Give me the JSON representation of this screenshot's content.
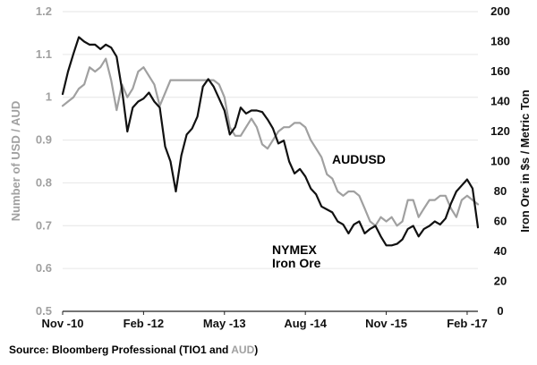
{
  "chart_data": {
    "type": "line",
    "xlabel": "",
    "ylabel_left": "Number of USD / AUD",
    "ylabel_right": "Iron Ore in $s / Metric Ton",
    "x_ticks": [
      "Nov -10",
      "Feb -12",
      "May -13",
      "Aug -14",
      "Nov -15",
      "Feb -17"
    ],
    "ylim_left": [
      0.5,
      1.2
    ],
    "ylim_right": [
      0,
      200
    ],
    "y_ticks_left": [
      "1.2",
      "1.1",
      "1",
      "0.9",
      "0.8",
      "0.7",
      "0.6",
      "0.5"
    ],
    "y_ticks_right": [
      "200",
      "180",
      "160",
      "140",
      "120",
      "100",
      "80",
      "60",
      "40",
      "20",
      "0"
    ],
    "grid": "horizontal",
    "series": [
      {
        "name": "AUDUSD",
        "axis": "left",
        "color": "#a0a0a0",
        "x": [
          "Nov -10",
          "Dec -10",
          "Jan -11",
          "Feb -11",
          "Mar -11",
          "Apr -11",
          "May -11",
          "Jun -11",
          "Jul -11",
          "Aug -11",
          "Sep -11",
          "Oct -11",
          "Nov -11",
          "Dec -11",
          "Jan -12",
          "Feb -12",
          "Mar -12",
          "Apr -12",
          "May -12",
          "Jun -12",
          "Jul -12",
          "Aug -12",
          "Sep -12",
          "Oct -12",
          "Nov -12",
          "Dec -12",
          "Jan -13",
          "Feb -13",
          "Mar -13",
          "Apr -13",
          "May -13",
          "Jun -13",
          "Jul -13",
          "Aug -13",
          "Sep -13",
          "Oct -13",
          "Nov -13",
          "Dec -13",
          "Jan -14",
          "Feb -14",
          "Mar -14",
          "Apr -14",
          "May -14",
          "Jun -14",
          "Jul -14",
          "Aug -14",
          "Sep -14",
          "Oct -14",
          "Nov -14",
          "Dec -14",
          "Jan -15",
          "Feb -15",
          "Mar -15",
          "Apr -15",
          "May -15",
          "Jun -15",
          "Jul -15",
          "Aug -15",
          "Sep -15",
          "Oct -15",
          "Nov -15",
          "Dec -15",
          "Jan -16",
          "Feb -16",
          "Mar -16",
          "Apr -16",
          "May -16",
          "Jun -16",
          "Jul -16",
          "Aug -16",
          "Sep -16",
          "Oct -16",
          "Nov -16",
          "Dec -16",
          "Jan -17",
          "Feb -17",
          "Mar -17",
          "Apr -17"
        ],
        "values": [
          0.98,
          0.99,
          1.0,
          1.02,
          1.03,
          1.07,
          1.06,
          1.07,
          1.09,
          1.04,
          0.97,
          1.03,
          1.0,
          1.02,
          1.06,
          1.07,
          1.05,
          1.03,
          0.98,
          1.01,
          1.04,
          1.04,
          1.04,
          1.04,
          1.04,
          1.04,
          1.04,
          1.04,
          1.04,
          1.03,
          1.0,
          0.93,
          0.91,
          0.91,
          0.93,
          0.95,
          0.93,
          0.89,
          0.88,
          0.9,
          0.92,
          0.93,
          0.93,
          0.94,
          0.94,
          0.93,
          0.9,
          0.88,
          0.86,
          0.82,
          0.81,
          0.78,
          0.77,
          0.78,
          0.78,
          0.77,
          0.74,
          0.71,
          0.7,
          0.72,
          0.71,
          0.72,
          0.7,
          0.71,
          0.76,
          0.76,
          0.72,
          0.74,
          0.76,
          0.76,
          0.77,
          0.77,
          0.74,
          0.72,
          0.76,
          0.77,
          0.76,
          0.75
        ]
      },
      {
        "name": "NYMEX Iron Ore",
        "axis": "right",
        "color": "#111111",
        "x": [
          "Nov -10",
          "Dec -10",
          "Jan -11",
          "Feb -11",
          "Mar -11",
          "Apr -11",
          "May -11",
          "Jun -11",
          "Jul -11",
          "Aug -11",
          "Sep -11",
          "Oct -11",
          "Nov -11",
          "Dec -11",
          "Jan -12",
          "Feb -12",
          "Mar -12",
          "Apr -12",
          "May -12",
          "Jun -12",
          "Jul -12",
          "Aug -12",
          "Sep -12",
          "Oct -12",
          "Nov -12",
          "Dec -12",
          "Jan -13",
          "Feb -13",
          "Mar -13",
          "Apr -13",
          "May -13",
          "Jun -13",
          "Jul -13",
          "Aug -13",
          "Sep -13",
          "Oct -13",
          "Nov -13",
          "Dec -13",
          "Jan -14",
          "Feb -14",
          "Mar -14",
          "Apr -14",
          "May -14",
          "Jun -14",
          "Jul -14",
          "Aug -14",
          "Sep -14",
          "Oct -14",
          "Nov -14",
          "Dec -14",
          "Jan -15",
          "Feb -15",
          "Mar -15",
          "Apr -15",
          "May -15",
          "Jun -15",
          "Jul -15",
          "Aug -15",
          "Sep -15",
          "Oct -15",
          "Nov -15",
          "Dec -15",
          "Jan -16",
          "Feb -16",
          "Mar -16",
          "Apr -16",
          "May -16",
          "Jun -16",
          "Jul -16",
          "Aug -16",
          "Sep -16",
          "Oct -16",
          "Nov -16",
          "Dec -16",
          "Jan -17",
          "Feb -17",
          "Mar -17",
          "Apr -17"
        ],
        "values": [
          145,
          160,
          172,
          183,
          180,
          178,
          178,
          175,
          178,
          176,
          170,
          148,
          120,
          136,
          140,
          142,
          146,
          140,
          136,
          110,
          100,
          80,
          104,
          118,
          122,
          130,
          150,
          155,
          150,
          142,
          134,
          118,
          123,
          136,
          132,
          134,
          134,
          133,
          128,
          122,
          112,
          114,
          100,
          92,
          95,
          90,
          82,
          78,
          70,
          68,
          66,
          60,
          58,
          52,
          58,
          60,
          52,
          55,
          57,
          50,
          44,
          44,
          45,
          48,
          55,
          57,
          50,
          55,
          57,
          60,
          58,
          62,
          72,
          80,
          84,
          88,
          82,
          56
        ]
      }
    ],
    "annotations": [
      {
        "text": "AUDUSD"
      },
      {
        "text": "NYMEX"
      },
      {
        "text": "Iron Ore"
      }
    ]
  },
  "source": {
    "prefix": "Source: Bloomberg Professional (TIO1 and ",
    "highlight": "AUD",
    "suffix": ")"
  },
  "colors": {
    "left_axis_text": "#a0a0a0",
    "right_axis_text": "#111111",
    "grid": "#e6e6e6",
    "source_highlight": "#a0a0a0"
  }
}
